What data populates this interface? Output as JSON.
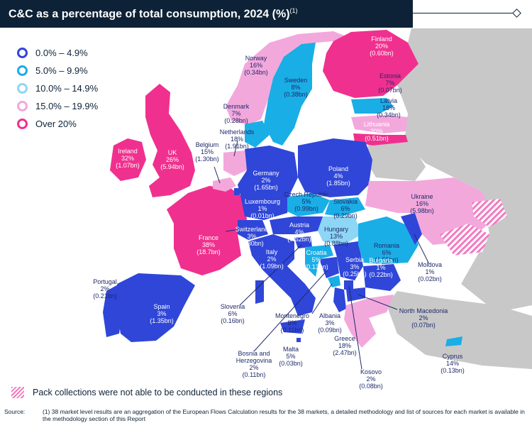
{
  "title": "C&C as a percentage of total consumption, 2024 (%)",
  "title_note": "(1)",
  "legend": [
    {
      "label": "0.0% – 4.9%",
      "color": "#2f46d8"
    },
    {
      "label": "5.0% – 9.9%",
      "color": "#1aaee6"
    },
    {
      "label": "10.0% – 14.9%",
      "color": "#8ed6f5"
    },
    {
      "label": "15.0% – 19.9%",
      "color": "#f3a8dc"
    },
    {
      "label": "Over 20%",
      "color": "#f0308e"
    }
  ],
  "countries": [
    {
      "name": "Finland",
      "pct": "20%",
      "value": "(0.60bn)"
    },
    {
      "name": "Norway",
      "pct": "16%",
      "value": "(0.34bn)"
    },
    {
      "name": "Sweden",
      "pct": "8%",
      "value": "(0.38bn)"
    },
    {
      "name": "Estonia",
      "pct": "7%",
      "value": "(0.07bn)"
    },
    {
      "name": "Latvia",
      "pct": "18%",
      "value": "(0.34bn)"
    },
    {
      "name": "Lithuania",
      "pct": "20%",
      "value": "(0.51bn)"
    },
    {
      "name": "Denmark",
      "pct": "7%",
      "value": "(0.28bn)"
    },
    {
      "name": "Netherlands",
      "pct": "18%",
      "value": "(1.91bn)"
    },
    {
      "name": "Ireland",
      "pct": "32%",
      "value": "(1.07bn)"
    },
    {
      "name": "UK",
      "pct": "26%",
      "value": "(5.94bn)"
    },
    {
      "name": "Belgium",
      "pct": "15%",
      "value": "(1.30bn)"
    },
    {
      "name": "Germany",
      "pct": "2%",
      "value": "(1.65bn)"
    },
    {
      "name": "Poland",
      "pct": "4%",
      "value": "(1.85bn)"
    },
    {
      "name": "Luxembourg",
      "pct": "1%",
      "value": "(0.01bn)"
    },
    {
      "name": "Czech Republic",
      "pct": "5%",
      "value": "(0.99bn)"
    },
    {
      "name": "Slovakia",
      "pct": "6%",
      "value": "(0.29bn)"
    },
    {
      "name": "Ukraine",
      "pct": "16%",
      "value": "(5.98bn)"
    },
    {
      "name": "France",
      "pct": "38%",
      "value": "(18.7bn)"
    },
    {
      "name": "Switzerland",
      "pct": "3%",
      "value": "(0.30bn)"
    },
    {
      "name": "Austria",
      "pct": "4%",
      "value": "(0.52bn)"
    },
    {
      "name": "Hungary",
      "pct": "13%",
      "value": "(0.88bn)"
    },
    {
      "name": "Romania",
      "pct": "6%",
      "value": "(1.55bn)"
    },
    {
      "name": "Moldova",
      "pct": "1%",
      "value": "(0.02bn)"
    },
    {
      "name": "Italy",
      "pct": "2%",
      "value": "(1.09bn)"
    },
    {
      "name": "Croatia",
      "pct": "5%",
      "value": "(0.13bn)"
    },
    {
      "name": "Serbia",
      "pct": "3%",
      "value": "(0.25bn)"
    },
    {
      "name": "Bulgaria",
      "pct": "1%",
      "value": "(0.22bn)"
    },
    {
      "name": "Portugal",
      "pct": "2%",
      "value": "(0.21bn)"
    },
    {
      "name": "Spain",
      "pct": "3%",
      "value": "(1.35bn)"
    },
    {
      "name": "Slovenia",
      "pct": "6%",
      "value": "(0.16bn)"
    },
    {
      "name": "Montenegro",
      "pct": "8%",
      "value": "(0.11bn)"
    },
    {
      "name": "Albania",
      "pct": "3%",
      "value": "(0.09bn)"
    },
    {
      "name": "North Macedonia",
      "pct": "2%",
      "value": "(0.07bn)"
    },
    {
      "name": "Greece",
      "pct": "18%",
      "value": "(2.47bn)"
    },
    {
      "name": "Bosnia and Herzegovina",
      "pct": "2%",
      "value": "(0.11bn)"
    },
    {
      "name": "Malta",
      "pct": "5%",
      "value": "(0.03bn)"
    },
    {
      "name": "Kosovo",
      "pct": "2%",
      "value": "(0.08bn)"
    },
    {
      "name": "Cyprus",
      "pct": "14%",
      "value": "(0.13bn)"
    }
  ],
  "pack_note": "Pack collections were not able to be conducted in these regions",
  "source_label": "Source:",
  "source_text": "(1) 38 market level results are an aggregation of the European Flows Calculation results for the 38 markets, a detailed methodology and list of sources for each market is available in the methodology section of this Report"
}
